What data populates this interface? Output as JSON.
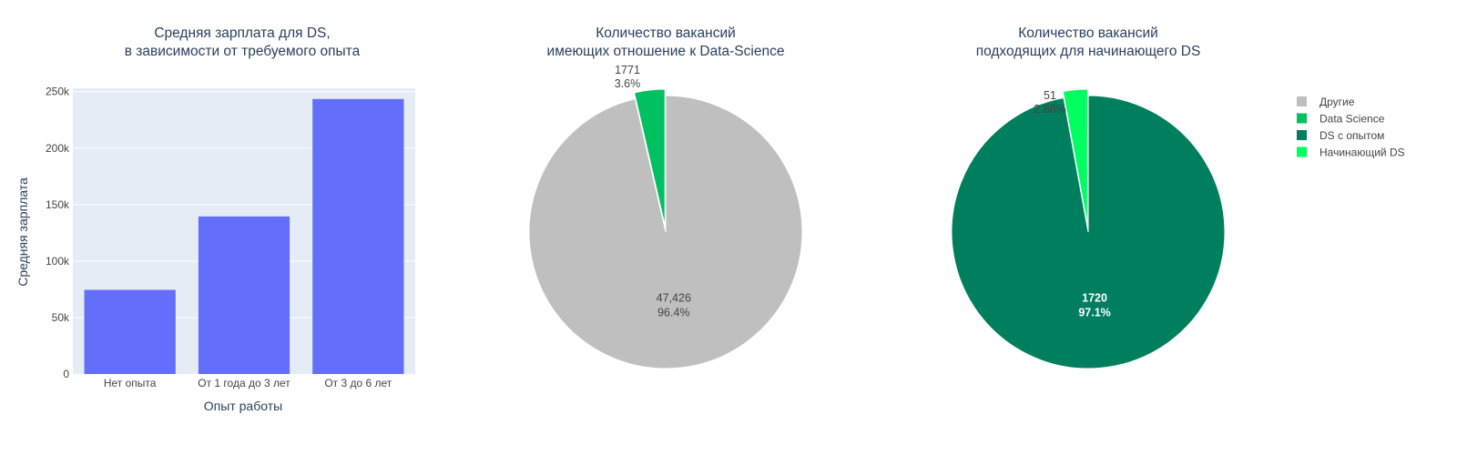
{
  "chart_data": [
    {
      "type": "bar",
      "title": [
        "Средняя зарплата для DS,",
        "в зависимости от требуемого опыта"
      ],
      "xlabel": "Опыт работы",
      "ylabel": "Средняя зарплата",
      "categories": [
        "Нет опыта",
        "От 1 года до 3 лет",
        "От 3 до 6 лет"
      ],
      "values": [
        74500,
        139500,
        243500
      ],
      "ylim": [
        0,
        253000
      ],
      "yticks": [
        0,
        50000,
        100000,
        150000,
        200000,
        250000
      ],
      "ytick_labels": [
        "0",
        "50k",
        "100k",
        "150k",
        "200k",
        "250k"
      ],
      "color": "#636efa",
      "plot_bg": "#e5ecf6",
      "grid": true
    },
    {
      "type": "pie",
      "title": [
        "Количество вакансий",
        "имеющих отношение к Data-Science"
      ],
      "labels": [
        "Другие",
        "Data Science"
      ],
      "values": [
        47426,
        1771
      ],
      "display_values": [
        "47,426",
        "1771"
      ],
      "display_percents": [
        "96.4%",
        "3.6%"
      ],
      "colors": [
        "#bfbfbf",
        "#00c060"
      ],
      "pulled": [
        false,
        true
      ]
    },
    {
      "type": "pie",
      "title": [
        "Количество вакансий",
        "подходящих для начинающего DS"
      ],
      "labels": [
        "DS с опытом",
        "Начинающий DS"
      ],
      "values": [
        1720,
        51
      ],
      "display_values": [
        "1720",
        "51"
      ],
      "display_percents": [
        "97.1%",
        "2.88%"
      ],
      "colors": [
        "#007f5f",
        "#00ff60"
      ],
      "pulled": [
        false,
        true
      ]
    }
  ],
  "legend": {
    "placement": "top-right",
    "items": [
      {
        "label": "Другие",
        "color": "#bfbfbf"
      },
      {
        "label": "Data Science",
        "color": "#00c060"
      },
      {
        "label": "DS с опытом",
        "color": "#007f5f"
      },
      {
        "label": "Начинающий DS",
        "color": "#00ff60"
      }
    ]
  }
}
